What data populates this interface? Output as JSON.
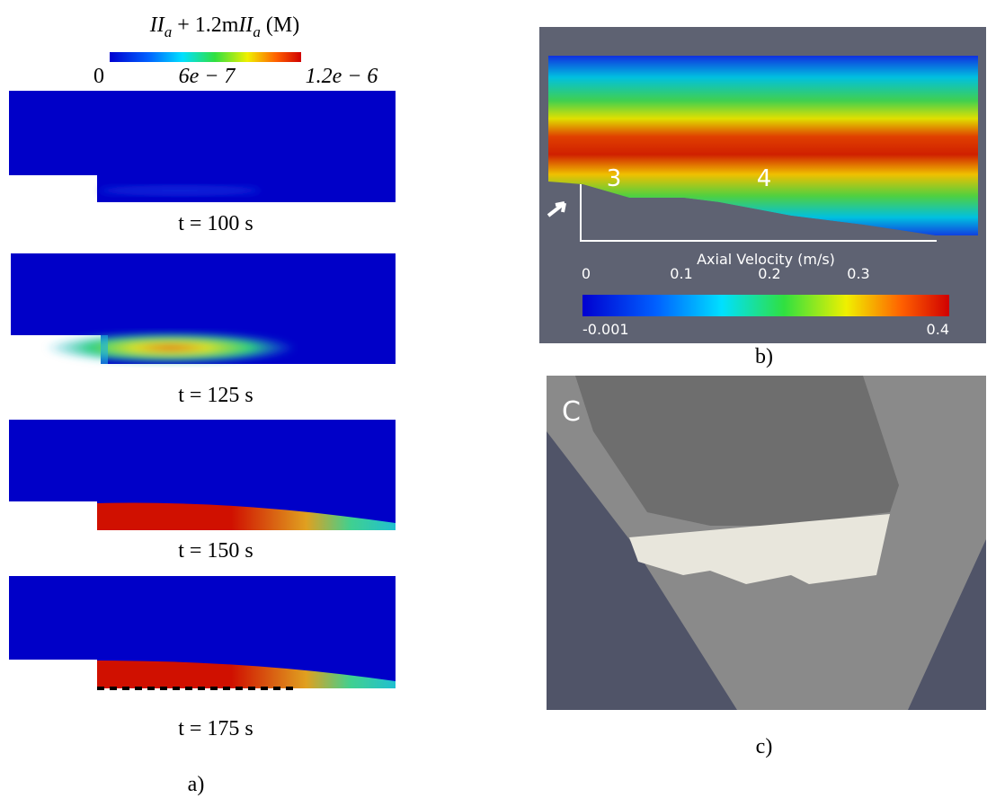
{
  "panel_a": {
    "colorbar_title": [
      "II",
      "a",
      " + 1.2m",
      "II",
      "a",
      " (M)"
    ],
    "colorbar_ticks": [
      "0",
      "6e − 7",
      "1.2e − 6"
    ],
    "frames": [
      "t = 100 s",
      "t = 125 s",
      "t = 150 s",
      "t = 175 s"
    ],
    "label": "a)"
  },
  "panel_b": {
    "markers": [
      "3",
      "4"
    ],
    "axis_title": "Axial Velocity (m/s)",
    "axis_ticks": [
      "0",
      "0.1",
      "0.2",
      "0.3"
    ],
    "colorbar_min": "-0.001",
    "colorbar_max": "0.4",
    "label": "b)"
  },
  "panel_c": {
    "corner_label": "C",
    "label": "c)"
  }
}
